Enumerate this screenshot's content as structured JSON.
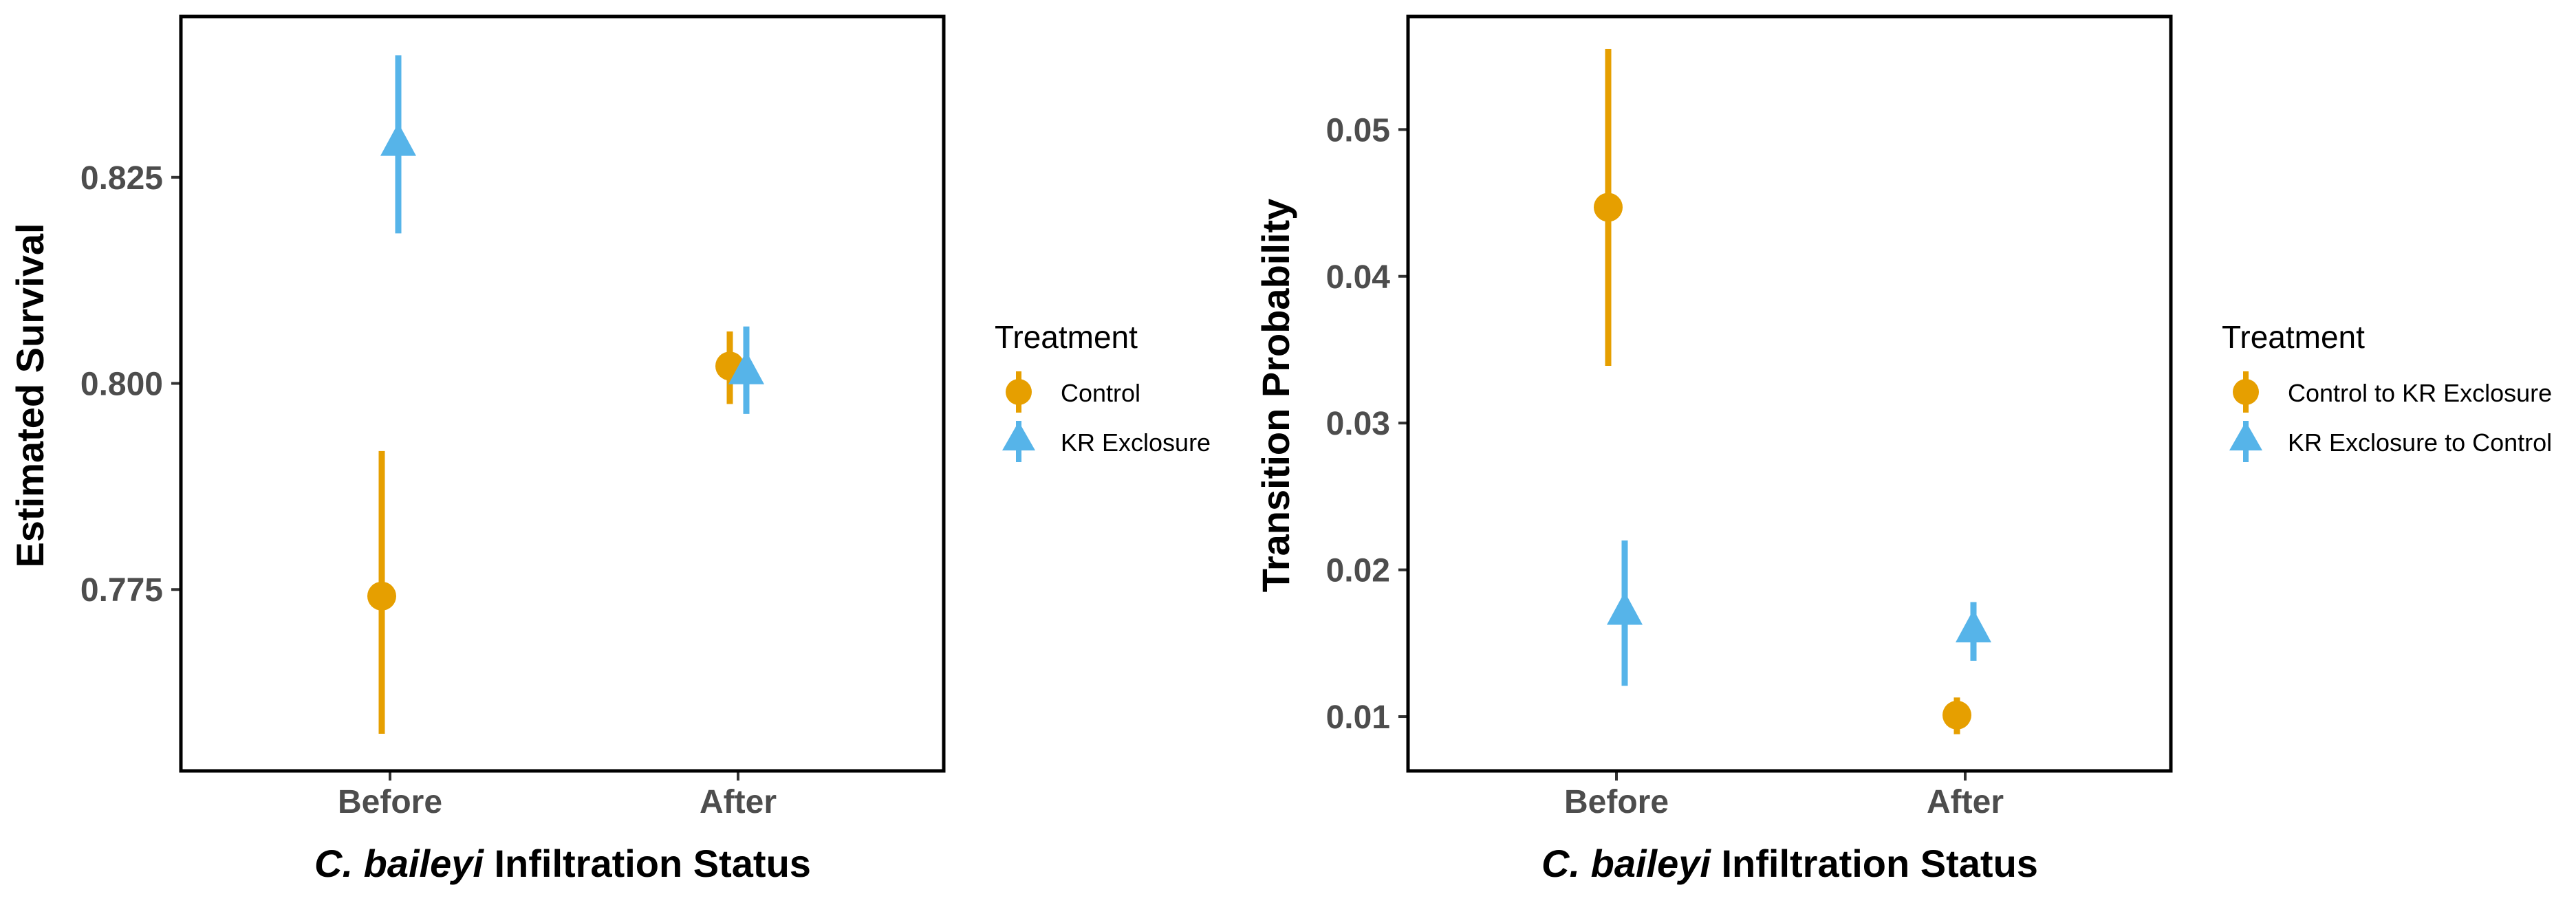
{
  "colors": {
    "control": "#E69F00",
    "kr": "#56B4E9",
    "text": "#4d4d4d"
  },
  "chart_data": [
    {
      "type": "scatter",
      "subtype": "point-range",
      "xlabel_italic": "C. baileyi",
      "xlabel_rest": "Infiltration Status",
      "ylabel": "Estimated Survival",
      "categories": [
        "Before",
        "After"
      ],
      "y_ticks": [
        "0.775",
        "0.800",
        "0.825"
      ],
      "y_tick_values": [
        0.775,
        0.8,
        0.825
      ],
      "ylim": [
        0.753,
        0.8445
      ],
      "legend_title": "Treatment",
      "legend_position": "right",
      "grid": false,
      "series": [
        {
          "name": "Control",
          "marker": "circle",
          "color": "#E69F00",
          "values": [
            0.7742,
            0.8021
          ],
          "lower": [
            0.7575,
            0.7975
          ],
          "upper": [
            0.7918,
            0.8063
          ]
        },
        {
          "name": "KR Exclosure",
          "marker": "triangle",
          "color": "#56B4E9",
          "values": [
            0.8291,
            0.8014
          ],
          "lower": [
            0.8182,
            0.7963
          ],
          "upper": [
            0.8398,
            0.8069
          ]
        }
      ]
    },
    {
      "type": "scatter",
      "subtype": "point-range",
      "xlabel_italic": "C. baileyi",
      "xlabel_rest": "Infiltration Status",
      "ylabel": "Transition Probability",
      "categories": [
        "Before",
        "After"
      ],
      "y_ticks": [
        "0.01",
        "0.02",
        "0.03",
        "0.04",
        "0.05"
      ],
      "y_tick_values": [
        0.01,
        0.02,
        0.03,
        0.04,
        0.05
      ],
      "ylim": [
        0.0063,
        0.0577
      ],
      "legend_title": "Treatment",
      "legend_position": "right",
      "grid": false,
      "series": [
        {
          "name": "Control to KR Exclosure",
          "marker": "circle",
          "color": "#E69F00",
          "values": [
            0.0447,
            0.0101
          ],
          "lower": [
            0.0339,
            0.0088
          ],
          "upper": [
            0.0555,
            0.0113
          ]
        },
        {
          "name": "KR Exclosure to Control",
          "marker": "triangle",
          "color": "#56B4E9",
          "values": [
            0.0171,
            0.0159
          ],
          "lower": [
            0.0121,
            0.0138
          ],
          "upper": [
            0.022,
            0.0178
          ]
        }
      ]
    }
  ]
}
